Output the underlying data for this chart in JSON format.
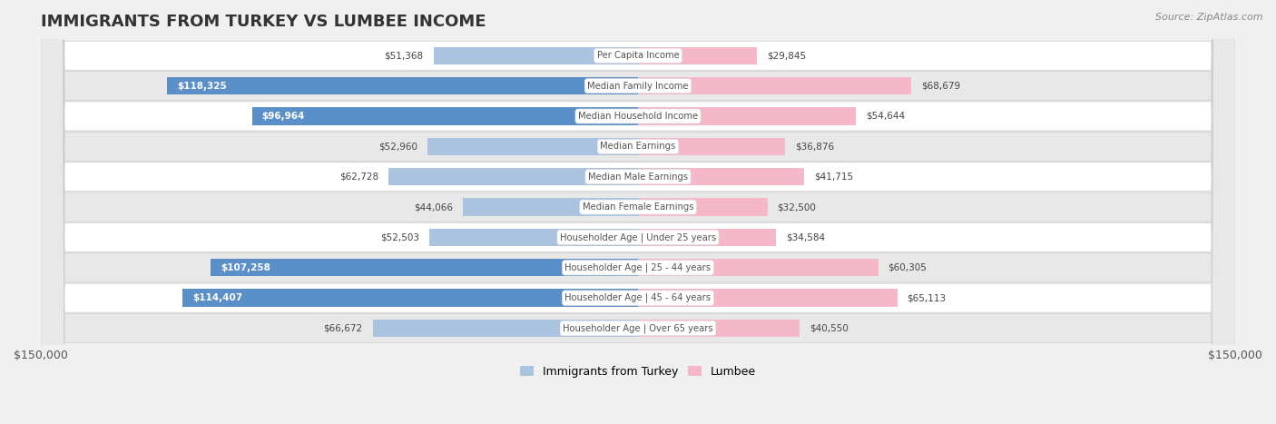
{
  "title": "IMMIGRANTS FROM TURKEY VS LUMBEE INCOME",
  "source": "Source: ZipAtlas.com",
  "categories": [
    "Per Capita Income",
    "Median Family Income",
    "Median Household Income",
    "Median Earnings",
    "Median Male Earnings",
    "Median Female Earnings",
    "Householder Age | Under 25 years",
    "Householder Age | 25 - 44 years",
    "Householder Age | 45 - 64 years",
    "Householder Age | Over 65 years"
  ],
  "turkey_values": [
    51368,
    118325,
    96964,
    52960,
    62728,
    44066,
    52503,
    107258,
    114407,
    66672
  ],
  "lumbee_values": [
    29845,
    68679,
    54644,
    36876,
    41715,
    32500,
    34584,
    60305,
    65113,
    40550
  ],
  "turkey_color_light": "#aac4e0",
  "turkey_color_strong": "#5b8fc7",
  "lumbee_color_light": "#f4b8c8",
  "lumbee_color_strong": "#e8567a",
  "xlim": 150000,
  "bar_height": 0.58,
  "bg_color": "#f0f0f0",
  "row_color_odd": "#ffffff",
  "row_color_even": "#e8e8e8",
  "label_color_inside": "#ffffff",
  "label_color_outside": "#555555",
  "center_label_bg": "#ffffff",
  "center_label_color": "#555555",
  "threshold": 75000
}
